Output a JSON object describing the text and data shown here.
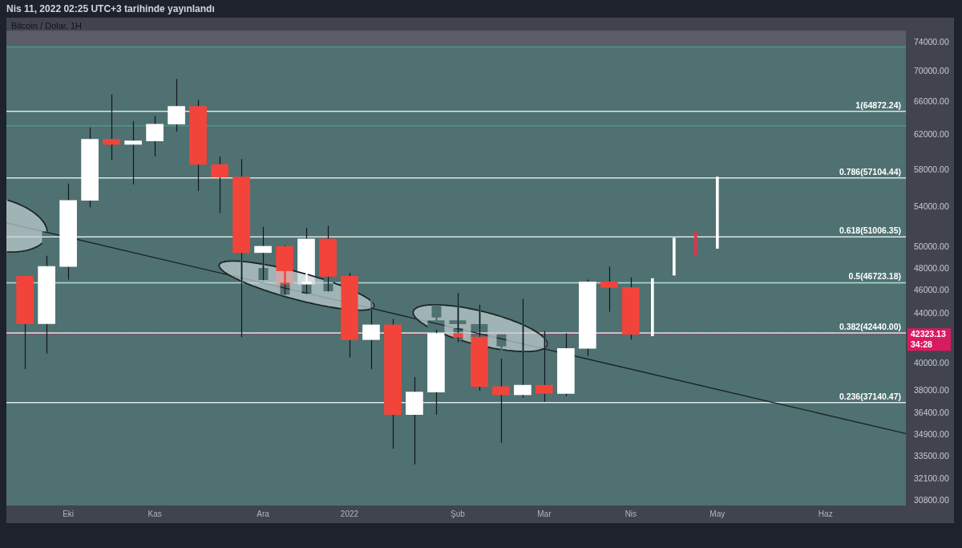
{
  "chart_data": {
    "type": "candlestick",
    "title": "Bitcoin / Dolar, 1H",
    "subtitle": "Nis 11, 2022 02:25 UTC+3 tarihinde yayınlandı",
    "series": [
      {
        "x": [
          "2021-09-20",
          "2021-09-27",
          "2021-10-04",
          "2021-10-11",
          "2021-10-18",
          "2021-10-25",
          "2021-11-01",
          "2021-11-08",
          "2021-11-15",
          "2021-11-22",
          "2021-11-29",
          "2021-12-06",
          "2021-12-13",
          "2021-12-20",
          "2021-12-27",
          "2022-01-03",
          "2022-01-10",
          "2022-01-17",
          "2022-01-24",
          "2022-01-31",
          "2022-02-07",
          "2022-02-14",
          "2022-02-21",
          "2022-02-28",
          "2022-03-07",
          "2022-03-14",
          "2022-03-21",
          "2022-03-28",
          "2022-04-04"
        ],
        "ohlc": [
          [
            47300,
            47300,
            39600,
            43200
          ],
          [
            43200,
            49200,
            40800,
            48200
          ],
          [
            48200,
            56500,
            47000,
            54700
          ],
          [
            54700,
            62900,
            54000,
            61500
          ],
          [
            61500,
            67000,
            59100,
            60900
          ],
          [
            60900,
            63700,
            56400,
            61300
          ],
          [
            61300,
            64300,
            59500,
            63300
          ],
          [
            63300,
            69000,
            62400,
            65500
          ],
          [
            65500,
            66300,
            55700,
            58600
          ],
          [
            58600,
            59500,
            53400,
            57200
          ],
          [
            57200,
            59200,
            42100,
            49500
          ],
          [
            49500,
            52000,
            46800,
            50100
          ],
          [
            50100,
            50200,
            45500,
            46600
          ],
          [
            46600,
            51900,
            45600,
            50800
          ],
          [
            50800,
            52100,
            45800,
            47300
          ],
          [
            47300,
            47600,
            40500,
            41900
          ],
          [
            41900,
            44400,
            39600,
            43100
          ],
          [
            43100,
            43600,
            34000,
            36300
          ],
          [
            36300,
            39000,
            33000,
            37900
          ],
          [
            37900,
            42700,
            36300,
            42400
          ],
          [
            42400,
            45800,
            41700,
            42100
          ],
          [
            42100,
            44800,
            38000,
            38300
          ],
          [
            38300,
            40400,
            34400,
            37700
          ],
          [
            37700,
            45300,
            37500,
            38400
          ],
          [
            38400,
            42600,
            37200,
            37800
          ],
          [
            37800,
            42400,
            37600,
            41200
          ],
          [
            41200,
            47000,
            40600,
            46800
          ],
          [
            46800,
            48200,
            44200,
            46300
          ],
          [
            46300,
            47200,
            41900,
            42323.13
          ]
        ],
        "colors": [
          "#f2443a",
          "#ffffff",
          "#ffffff",
          "#ffffff",
          "#f2443a",
          "#ffffff",
          "#ffffff",
          "#ffffff",
          "#f2443a",
          "#f2443a",
          "#f2443a",
          "#ffffff",
          "#f2443a",
          "#ffffff",
          "#f2443a",
          "#f2443a",
          "#ffffff",
          "#f2443a",
          "#ffffff",
          "#ffffff",
          "#f2443a",
          "#f2443a",
          "#f2443a",
          "#ffffff",
          "#f2443a",
          "#ffffff",
          "#ffffff",
          "#f2443a",
          "#f2443a"
        ]
      },
      {
        "type": "line",
        "x": [
          "2021-09-14",
          "2022-07-02"
        ],
        "values": [
          52400,
          35000
        ],
        "color": "#1a2424"
      },
      {
        "type": "bar",
        "x": [
          "2022-04-11",
          "2022-04-18",
          "2022-04-25",
          "2022-05-02"
        ],
        "base": [
          42200,
          47400,
          49300,
          49900
        ],
        "values": [
          4900,
          3500,
          2200,
          7300
        ],
        "colors": [
          "#ffffff",
          "#ffffff",
          "#e0344a",
          "#ffffff"
        ]
      }
    ],
    "xlim": [
      "2021-09-14",
      "2022-07-02"
    ],
    "xticks": [
      {
        "value": "2021-10-04",
        "label": "Eki"
      },
      {
        "value": "2021-11-01",
        "label": "Kas"
      },
      {
        "value": "2021-12-06",
        "label": "Ara"
      },
      {
        "value": "2022-01-03",
        "label": "2022"
      },
      {
        "value": "2022-02-07",
        "label": "Şub"
      },
      {
        "value": "2022-03-07",
        "label": "Mar"
      },
      {
        "value": "2022-04-04",
        "label": "Nis"
      },
      {
        "value": "2022-05-02",
        "label": "May"
      },
      {
        "value": "2022-06-06",
        "label": "Haz"
      }
    ],
    "ylim": [
      30500,
      75700
    ],
    "yticks": [
      {
        "value": 30800,
        "label": "30800.00"
      },
      {
        "value": 32100,
        "label": "32100.00"
      },
      {
        "value": 33500,
        "label": "33500.00"
      },
      {
        "value": 34900,
        "label": "34900.00"
      },
      {
        "value": 36400,
        "label": "36400.00"
      },
      {
        "value": 38000,
        "label": "38000.00"
      },
      {
        "value": 40000,
        "label": "40000.00"
      },
      {
        "value": 44000,
        "label": "44000.00"
      },
      {
        "value": 46000,
        "label": "46000.00"
      },
      {
        "value": 48000,
        "label": "48000.00"
      },
      {
        "value": 50000,
        "label": "50000.00"
      },
      {
        "value": 54000,
        "label": "54000.00"
      },
      {
        "value": 58000,
        "label": "58000.00"
      },
      {
        "value": 62000,
        "label": "62000.00"
      },
      {
        "value": 66000,
        "label": "66000.00"
      },
      {
        "value": 70000,
        "label": "70000.00"
      },
      {
        "value": 74000,
        "label": "74000.00"
      }
    ],
    "log": true,
    "grid": false,
    "legend": false,
    "bands": [
      {
        "axis": "y",
        "from": 30500,
        "to": 73400,
        "color": "#4f7171"
      }
    ],
    "ref_lines": [
      {
        "axis": "y",
        "value": 73400,
        "color": "#4a9890"
      },
      {
        "axis": "y",
        "value": 64872.24,
        "label": "1(64872.24)",
        "color": "#dde4e4"
      },
      {
        "axis": "y",
        "value": 63100,
        "color": "#4a9890"
      },
      {
        "axis": "y",
        "value": 57104.44,
        "label": "0.786(57104.44)",
        "color": "#dde4e4"
      },
      {
        "axis": "y",
        "value": 51006.35,
        "label": "0.618(51006.35)",
        "color": "#dde4e4"
      },
      {
        "axis": "y",
        "value": 46723.18,
        "label": "0.5(46723.18)",
        "color": "#b4e0d9"
      },
      {
        "axis": "y",
        "value": 42440.0,
        "label": "0.382(42440.00)",
        "color": "#dde4e4"
      },
      {
        "axis": "y",
        "value": 37140.47,
        "label": "0.236(37140.47)",
        "color": "#dde4e4"
      },
      {
        "axis": "y",
        "value": 42323.13,
        "label": "42323.13",
        "color": "#d81b60",
        "line_style": "dotted"
      }
    ],
    "annotations": [
      "34:28"
    ]
  }
}
